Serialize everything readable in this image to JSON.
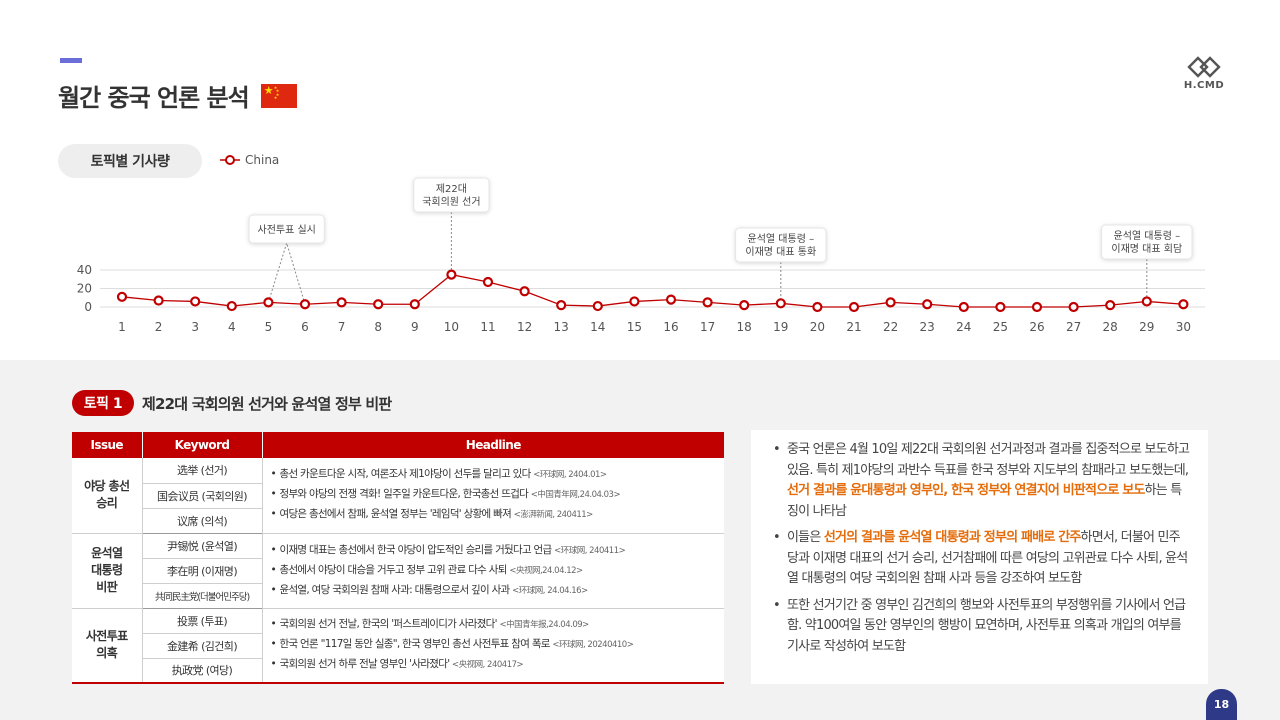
{
  "header": {
    "title": "월간 중국 언론 분석",
    "logo_text": "H.CMD"
  },
  "chart_section": {
    "pill_label": "토픽별 기사량",
    "legend_label": "China"
  },
  "chart_data": {
    "type": "line",
    "x": [
      1,
      2,
      3,
      4,
      5,
      6,
      7,
      8,
      9,
      10,
      11,
      12,
      13,
      14,
      15,
      16,
      17,
      18,
      19,
      20,
      21,
      22,
      23,
      24,
      25,
      26,
      27,
      28,
      29,
      30
    ],
    "series": [
      {
        "name": "China",
        "values": [
          11,
          7,
          6,
          1,
          5,
          3,
          5,
          3,
          3,
          35,
          27,
          17,
          2,
          1,
          6,
          8,
          5,
          2,
          4,
          0,
          0,
          5,
          3,
          0,
          0,
          0,
          0,
          2,
          6,
          3
        ]
      }
    ],
    "ylim": [
      0,
      40
    ],
    "yticks": [
      0,
      20,
      40
    ],
    "grid": true,
    "line_color": "#c00000",
    "annotations": [
      {
        "x": 5.5,
        "text": [
          "사전투표 실시"
        ]
      },
      {
        "x": 10,
        "text": [
          "제22대",
          "국회의원 선거"
        ]
      },
      {
        "x": 19,
        "text": [
          "윤석열 대통령 –",
          "이재명 대표 통화"
        ]
      },
      {
        "x": 29,
        "text": [
          "윤석열 대통령 –",
          "이재명 대표 회담"
        ]
      }
    ]
  },
  "topic": {
    "badge": "토픽 1",
    "title": "제22대 국회의원 선거와 윤석열 정부 비판"
  },
  "table": {
    "headers": {
      "issue": "Issue",
      "keyword": "Keyword",
      "headline": "Headline"
    },
    "groups": [
      {
        "issue": [
          "야당 총선",
          "승리"
        ],
        "keywords": [
          "选举 (선거)",
          "国会议员 (국회의원)",
          "议席 (의석)"
        ],
        "headlines": [
          {
            "text": "총선 카운트다운 시작, 여론조사 제1야당이 선두를 달리고 있다",
            "source": "<环球网, 2404.01>"
          },
          {
            "text": "정부와 야당의 전쟁 격화! 일주일 카운트다운, 한국총선 뜨겁다",
            "source": "<中国青年网,24.04.03>"
          },
          {
            "text": "여당은 총선에서 참패, 윤석열 정부는 '레임덕' 상황에 빠져",
            "source": "<澎湃新闻, 240411>"
          }
        ]
      },
      {
        "issue": [
          "윤석열",
          "대통령",
          "비판"
        ],
        "keywords": [
          "尹锡悦 (윤석열)",
          "李在明 (이재명)",
          "共同民主党(더불어민주당)"
        ],
        "headlines": [
          {
            "text": "이재명 대표는 총선에서 한국 야당이 압도적인 승리를 거뒀다고 언급",
            "source": "<环球网, 240411>"
          },
          {
            "text": "총선에서 야당이 대승을 거두고 정부 고위 관료 다수 사퇴",
            "source": "<央视网,24.04.12>"
          },
          {
            "text": "윤석열, 여당 국회의원 참패 사과: 대통령으로서 깊이 사과",
            "source": "<环球网, 24.04.16>"
          }
        ]
      },
      {
        "issue": [
          "사전투표",
          "의혹"
        ],
        "keywords": [
          "投票 (투표)",
          "金建希 (김건희)",
          "执政党 (여당)"
        ],
        "headlines": [
          {
            "text": "국회의원 선거 전날, 한국의 '퍼스트레이디가 사라졌다'",
            "source": "<中国青年报,24.04.09>"
          },
          {
            "text": "한국 언론 \"117일 동안 실종\", 한국 영부인 총선 사전투표 참여 폭로",
            "source": "<环球网, 20240410>"
          },
          {
            "text": "국회의원 선거 하루 전날 영부인 '사라졌다'",
            "source": "<央视网, 240417>"
          }
        ]
      }
    ]
  },
  "summary": {
    "b1_pre": "중국 언론은 4월 10일 제22대 국회의원 선거과정과 결과를 집중적으로 보도하고 있음. 특히 제1야당의 과반수 득표를 한국 정부와 지도부의 참패라고 보도했는데, ",
    "b1_hl": "선거 결과를 윤대통령과 영부인, 한국 정부와 연결지어 비판적으로 보도",
    "b1_post": "하는 특징이 나타남",
    "b2_pre": "이들은 ",
    "b2_hl": "선거의 결과를 윤석열 대통령과 정부의 패배로 간주",
    "b2_post": "하면서, 더불어 민주당과 이재명 대표의 선거 승리, 선거참패에 따른 여당의 고위관료 다수 사퇴, 윤석열 대통령의 여당 국회의원 참패 사과 등을 강조하여 보도함",
    "b3": "또한 선거기간 중 영부인 김건희의 행보와 사전투표의 부정행위를 기사에서 언급함. 약100여일 동안 영부인의 행방이 묘연하며, 사전투표 의혹과 개입의 여부를 기사로 작성하여 보도함"
  },
  "page_number": "18"
}
